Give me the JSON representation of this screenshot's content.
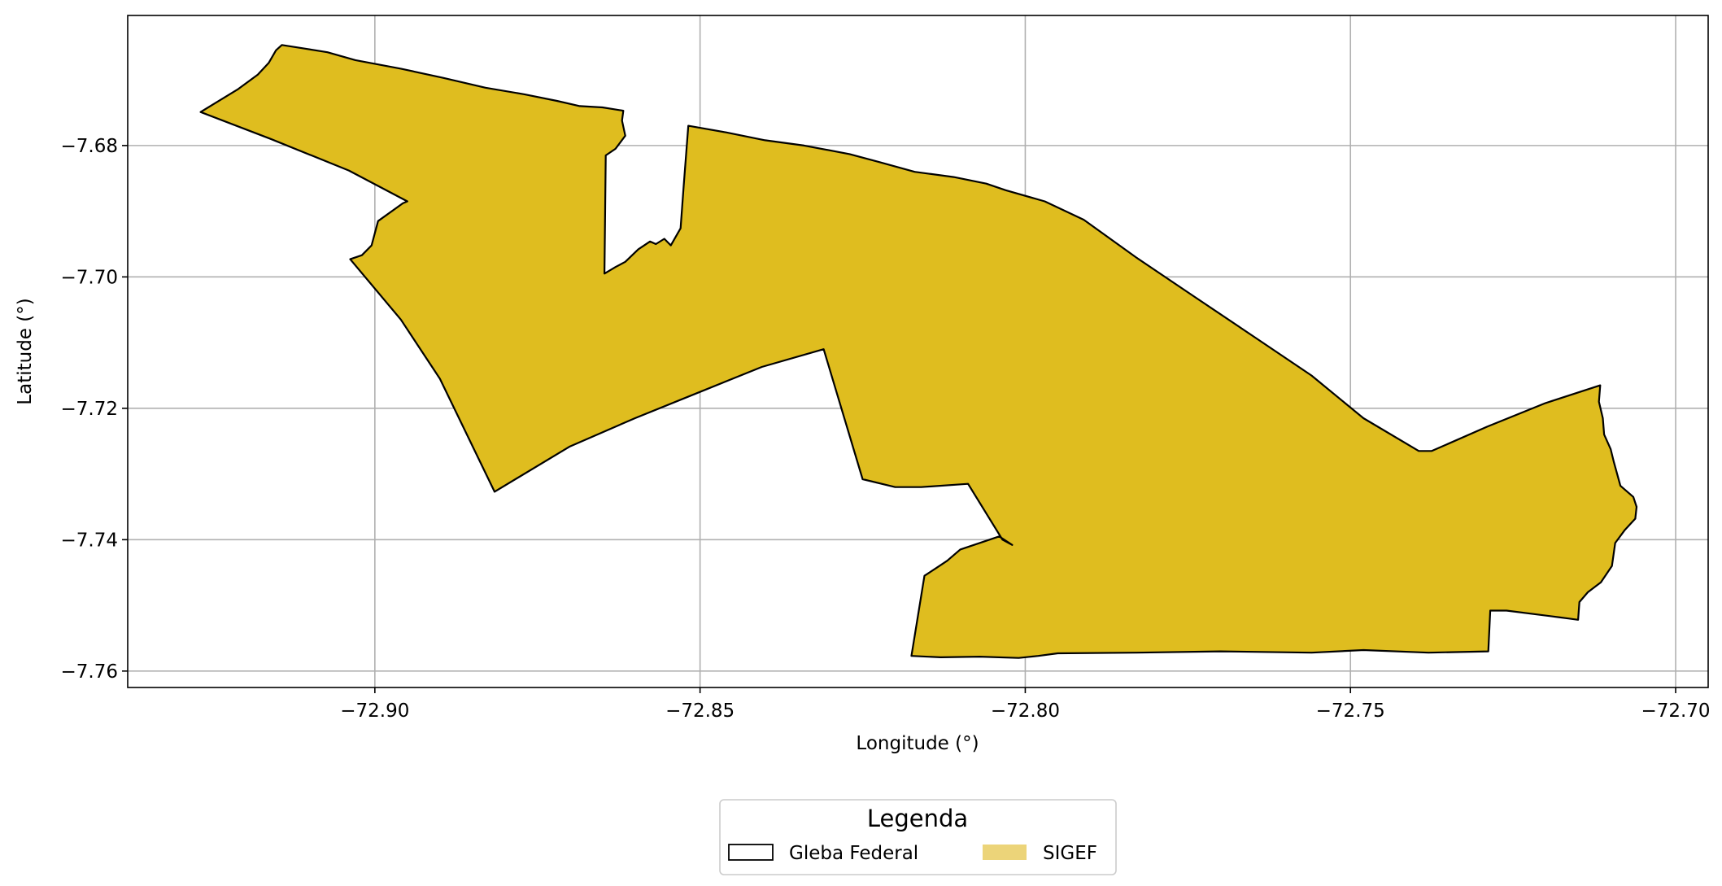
{
  "chart_data": {
    "type": "map",
    "xlabel": "Longitude (°)",
    "ylabel": "Latitude (°)",
    "xlim": [
      -72.938,
      -72.695
    ],
    "ylim": [
      -7.7625,
      -7.6602
    ],
    "x_ticks": [
      {
        "value": -72.9,
        "label": "−72.90"
      },
      {
        "value": -72.85,
        "label": "−72.85"
      },
      {
        "value": -72.8,
        "label": "−72.80"
      },
      {
        "value": -72.75,
        "label": "−72.75"
      },
      {
        "value": -72.7,
        "label": "−72.70"
      }
    ],
    "y_ticks": [
      {
        "value": -7.68,
        "label": "−7.68"
      },
      {
        "value": -7.7,
        "label": "−7.70"
      },
      {
        "value": -7.72,
        "label": "−7.72"
      },
      {
        "value": -7.74,
        "label": "−7.74"
      },
      {
        "value": -7.76,
        "label": "−7.76"
      }
    ],
    "grid": true,
    "legend": {
      "title": "Legenda",
      "placement": "bottom-center",
      "entries": [
        {
          "name": "Gleba Federal",
          "style": "outline",
          "color": "#000000"
        },
        {
          "name": "SIGEF",
          "style": "fill",
          "color": "#ecd479"
        }
      ]
    },
    "layers": [
      {
        "name": "SIGEF",
        "fill": "#dfbd1f",
        "stroke": "#000000",
        "polygon": [
          [
            -72.9268,
            -7.6749
          ],
          [
            -72.921,
            -7.6714
          ],
          [
            -72.918,
            -7.6692
          ],
          [
            -72.9163,
            -7.6674
          ],
          [
            -72.9152,
            -7.6655
          ],
          [
            -72.9143,
            -7.6647
          ],
          [
            -72.911,
            -7.6652
          ],
          [
            -72.9073,
            -7.6658
          ],
          [
            -72.903,
            -7.667
          ],
          [
            -72.896,
            -7.6683
          ],
          [
            -72.8895,
            -7.6697
          ],
          [
            -72.883,
            -7.6712
          ],
          [
            -72.877,
            -7.6722
          ],
          [
            -72.872,
            -7.6732
          ],
          [
            -72.8685,
            -7.674
          ],
          [
            -72.865,
            -7.6742
          ],
          [
            -72.8618,
            -7.6747
          ],
          [
            -72.862,
            -7.6762
          ],
          [
            -72.8615,
            -7.6785
          ],
          [
            -72.863,
            -7.6805
          ],
          [
            -72.8645,
            -7.6815
          ],
          [
            -72.8647,
            -7.6995
          ],
          [
            -72.863,
            -7.6985
          ],
          [
            -72.8615,
            -7.6977
          ],
          [
            -72.8595,
            -7.6958
          ],
          [
            -72.8577,
            -7.6946
          ],
          [
            -72.8568,
            -7.695
          ],
          [
            -72.8555,
            -7.6942
          ],
          [
            -72.8545,
            -7.6952
          ],
          [
            -72.853,
            -7.6926
          ],
          [
            -72.8525,
            -7.686
          ],
          [
            -72.8518,
            -7.677
          ],
          [
            -72.846,
            -7.678
          ],
          [
            -72.84,
            -7.6792
          ],
          [
            -72.834,
            -7.68
          ],
          [
            -72.827,
            -7.6813
          ],
          [
            -72.8225,
            -7.6825
          ],
          [
            -72.817,
            -7.684
          ],
          [
            -72.811,
            -7.6848
          ],
          [
            -72.806,
            -7.6858
          ],
          [
            -72.803,
            -7.6868
          ],
          [
            -72.797,
            -7.6885
          ],
          [
            -72.791,
            -7.6913
          ],
          [
            -72.783,
            -7.697
          ],
          [
            -72.774,
            -7.703
          ],
          [
            -72.765,
            -7.709
          ],
          [
            -72.756,
            -7.715
          ],
          [
            -72.748,
            -7.7215
          ],
          [
            -72.7395,
            -7.7265
          ],
          [
            -72.7375,
            -7.7265
          ],
          [
            -72.729,
            -7.7228
          ],
          [
            -72.72,
            -7.7192
          ],
          [
            -72.7116,
            -7.7165
          ],
          [
            -72.7118,
            -7.719
          ],
          [
            -72.7112,
            -7.7215
          ],
          [
            -72.711,
            -7.724
          ],
          [
            -72.71,
            -7.7262
          ],
          [
            -72.7095,
            -7.7282
          ],
          [
            -72.709,
            -7.73
          ],
          [
            -72.7085,
            -7.7318
          ],
          [
            -72.7065,
            -7.7335
          ],
          [
            -72.706,
            -7.735
          ],
          [
            -72.7062,
            -7.7368
          ],
          [
            -72.7078,
            -7.7385
          ],
          [
            -72.7093,
            -7.7405
          ],
          [
            -72.7098,
            -7.744
          ],
          [
            -72.7115,
            -7.7465
          ],
          [
            -72.7135,
            -7.748
          ],
          [
            -72.7148,
            -7.7495
          ],
          [
            -72.715,
            -7.7522
          ],
          [
            -72.7165,
            -7.752
          ],
          [
            -72.718,
            -7.7518
          ],
          [
            -72.726,
            -7.7508
          ],
          [
            -72.7285,
            -7.7508
          ],
          [
            -72.7288,
            -7.757
          ],
          [
            -72.738,
            -7.7572
          ],
          [
            -72.748,
            -7.7568
          ],
          [
            -72.756,
            -7.7572
          ],
          [
            -72.77,
            -7.757
          ],
          [
            -72.783,
            -7.7572
          ],
          [
            -72.795,
            -7.7573
          ],
          [
            -72.798,
            -7.7577
          ],
          [
            -72.801,
            -7.758
          ],
          [
            -72.807,
            -7.7578
          ],
          [
            -72.813,
            -7.7579
          ],
          [
            -72.8175,
            -7.7577
          ],
          [
            -72.8155,
            -7.7455
          ],
          [
            -72.8135,
            -7.7442
          ],
          [
            -72.812,
            -7.7432
          ],
          [
            -72.81,
            -7.7415
          ],
          [
            -72.804,
            -7.7395
          ],
          [
            -72.802,
            -7.7408
          ],
          [
            -72.8035,
            -7.74
          ],
          [
            -72.8088,
            -7.7315
          ],
          [
            -72.816,
            -7.732
          ],
          [
            -72.82,
            -7.732
          ],
          [
            -72.825,
            -7.7308
          ],
          [
            -72.831,
            -7.711
          ],
          [
            -72.8405,
            -7.7137
          ],
          [
            -72.85,
            -7.7175
          ],
          [
            -72.86,
            -7.7215
          ],
          [
            -72.87,
            -7.7258
          ],
          [
            -72.8816,
            -7.7327
          ],
          [
            -72.89,
            -7.7155
          ],
          [
            -72.896,
            -7.7065
          ],
          [
            -72.9038,
            -7.6973
          ],
          [
            -72.902,
            -7.6967
          ],
          [
            -72.9005,
            -7.6952
          ],
          [
            -72.8995,
            -7.6915
          ],
          [
            -72.8957,
            -7.6888
          ],
          [
            -72.895,
            -7.6885
          ],
          [
            -72.904,
            -7.6838
          ],
          [
            -72.916,
            -7.679
          ]
        ]
      },
      {
        "name": "Gleba Federal",
        "fill": "none",
        "stroke": "#000000",
        "polygon": []
      }
    ]
  }
}
